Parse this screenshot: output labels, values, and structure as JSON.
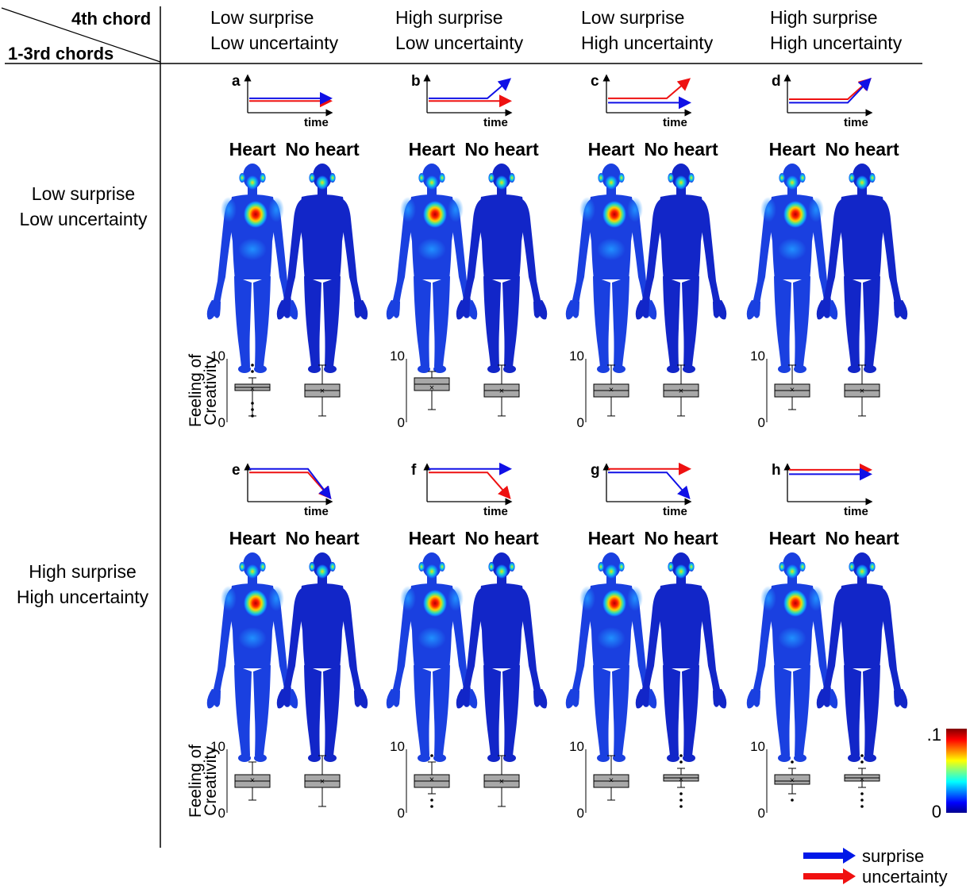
{
  "header": {
    "corner_top": "4th chord",
    "corner_bottom": "1-3rd chords",
    "columns": [
      {
        "line1": "Low surprise",
        "line2": "Low uncertainty"
      },
      {
        "line1": "High surprise",
        "line2": "Low uncertainty"
      },
      {
        "line1": "Low surprise",
        "line2": "High uncertainty"
      },
      {
        "line1": "High surprise",
        "line2": "High uncertainty"
      }
    ]
  },
  "rows": [
    {
      "line1": "Low surprise",
      "line2": "Low uncertainty"
    },
    {
      "line1": "High surprise",
      "line2": "High uncertainty"
    }
  ],
  "panels": [
    {
      "letter": "a",
      "blue": [
        0.55,
        0.55
      ],
      "red": [
        0.4,
        0.4
      ],
      "box": {
        "heart": {
          "min": 1,
          "q1": 5,
          "med": 5.5,
          "q3": 6,
          "max": 7,
          "mean": 5.3,
          "outliers": [
            9,
            8,
            3,
            2,
            1
          ]
        },
        "noheart": {
          "min": 1,
          "q1": 4,
          "med": 5,
          "q3": 6,
          "max": 9,
          "mean": 5
        }
      }
    },
    {
      "letter": "b",
      "blue": [
        0.55,
        1.6
      ],
      "red": [
        0.4,
        0.4
      ],
      "box": {
        "heart": {
          "min": 2,
          "q1": 5,
          "med": 6,
          "q3": 7,
          "max": 8,
          "mean": 5.5,
          "outliers": []
        },
        "noheart": {
          "min": 1,
          "q1": 4,
          "med": 5,
          "q3": 6,
          "max": 9,
          "mean": 5
        }
      }
    },
    {
      "letter": "c",
      "blue": [
        0.3,
        0.3
      ],
      "red": [
        0.55,
        1.6
      ],
      "box": {
        "heart": {
          "min": 1,
          "q1": 4,
          "med": 5,
          "q3": 6,
          "max": 9,
          "mean": 5.2,
          "outliers": []
        },
        "noheart": {
          "min": 1,
          "q1": 4,
          "med": 5,
          "q3": 6,
          "max": 9,
          "mean": 5
        }
      }
    },
    {
      "letter": "d",
      "blue": [
        0.3,
        1.6
      ],
      "red": [
        0.5,
        1.6
      ],
      "box": {
        "heart": {
          "min": 2,
          "q1": 4,
          "med": 5,
          "q3": 6,
          "max": 9,
          "mean": 5.2,
          "outliers": []
        },
        "noheart": {
          "min": 1,
          "q1": 4,
          "med": 5,
          "q3": 6,
          "max": 9,
          "mean": 5
        }
      }
    },
    {
      "letter": "e",
      "blue": [
        1.6,
        0.0
      ],
      "red": [
        1.4,
        0.0
      ],
      "box": {
        "heart": {
          "min": 2,
          "q1": 4,
          "med": 5,
          "q3": 6,
          "max": 8,
          "mean": 5.2,
          "outliers": []
        },
        "noheart": {
          "min": 1,
          "q1": 4,
          "med": 5,
          "q3": 6,
          "max": 9,
          "mean": 5
        }
      }
    },
    {
      "letter": "f",
      "blue": [
        1.6,
        1.6
      ],
      "red": [
        1.4,
        0.0
      ],
      "box": {
        "heart": {
          "min": 3,
          "q1": 4,
          "med": 5,
          "q3": 6,
          "max": 8,
          "mean": 5.3,
          "outliers": [
            9,
            2,
            1
          ]
        },
        "noheart": {
          "min": 1,
          "q1": 4,
          "med": 5,
          "q3": 6,
          "max": 9,
          "mean": 5
        }
      }
    },
    {
      "letter": "g",
      "blue": [
        1.4,
        0.0
      ],
      "red": [
        1.6,
        1.6
      ],
      "box": {
        "heart": {
          "min": 2,
          "q1": 4,
          "med": 5,
          "q3": 6,
          "max": 9,
          "mean": 5.2,
          "outliers": []
        },
        "noheart": {
          "min": 4,
          "q1": 5,
          "med": 5.5,
          "q3": 6,
          "max": 7,
          "mean": 5.3,
          "outliers": [
            9,
            8,
            3,
            2,
            1
          ]
        }
      }
    },
    {
      "letter": "h",
      "blue": [
        1.3,
        1.3
      ],
      "red": [
        1.55,
        1.55
      ],
      "box": {
        "heart": {
          "min": 3,
          "q1": 4.5,
          "med": 5,
          "q3": 6,
          "max": 7,
          "mean": 5.2,
          "outliers": [
            8,
            2
          ]
        },
        "noheart": {
          "min": 4,
          "q1": 5,
          "med": 5.5,
          "q3": 6,
          "max": 7,
          "mean": 5.3,
          "outliers": [
            9,
            8,
            3,
            2,
            1
          ]
        }
      }
    }
  ],
  "labels": {
    "heart": "Heart",
    "noheart": "No heart",
    "time": "time",
    "ylabel_1": "Feeling of",
    "ylabel_2": "Creativity",
    "ymax": "10",
    "ymin": "0"
  },
  "colorbar": {
    "max": ".1",
    "min": "0"
  },
  "legend": [
    {
      "label": "surprise",
      "color": "#0018e8"
    },
    {
      "label": "uncertainty",
      "color": "#f01010"
    }
  ],
  "colors": {
    "blue": "#1010e6",
    "red": "#ee1111",
    "box_fill": "#a8a8a8",
    "body_base": "#1428d8"
  }
}
